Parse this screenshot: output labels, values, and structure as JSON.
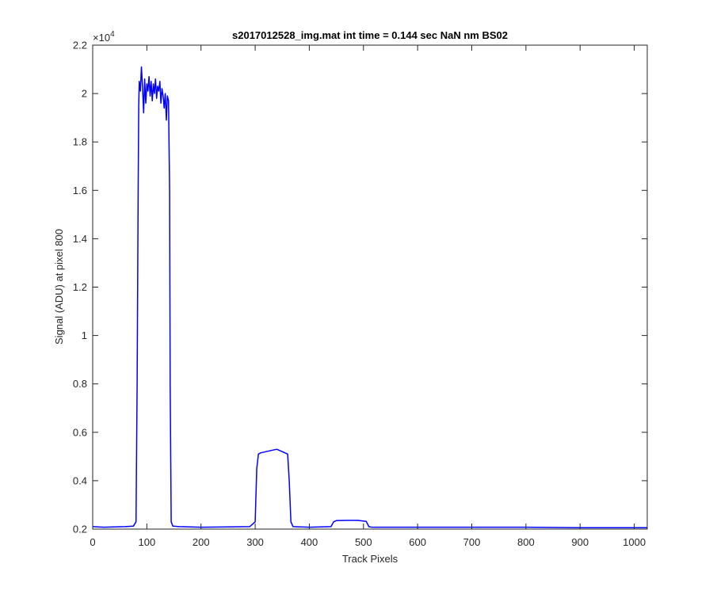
{
  "figure": {
    "title": "s2017012528_img.mat int time = 0.144 sec  NaN nm BS02"
  },
  "chart_data": {
    "type": "line",
    "title": "s2017012528_img.mat int time = 0.144 sec  NaN nm BS02",
    "xlabel": "Track Pixels",
    "ylabel": "Signal (ADU) at pixel 800",
    "xlim": [
      0,
      1024
    ],
    "ylim": [
      2000,
      22000
    ],
    "y_exponent_label": "×10",
    "y_exponent_power": "4",
    "grid": false,
    "legend": "none",
    "x_ticks": [
      0,
      100,
      200,
      300,
      400,
      500,
      600,
      700,
      800,
      900,
      1000
    ],
    "x_tick_labels": [
      "0",
      "100",
      "200",
      "300",
      "400",
      "500",
      "600",
      "700",
      "800",
      "900",
      "1000"
    ],
    "y_ticks": [
      2000,
      4000,
      6000,
      8000,
      10000,
      12000,
      14000,
      16000,
      18000,
      20000,
      22000
    ],
    "y_tick_labels": [
      "0.2",
      "0.4",
      "0.6",
      "0.8",
      "1",
      "1.2",
      "1.4",
      "1.6",
      "1.8",
      "2",
      "2.2"
    ],
    "series": [
      {
        "color": "#0000ff",
        "x": [
          0,
          20,
          40,
          60,
          75,
          80,
          82,
          84,
          85,
          86,
          88,
          90,
          92,
          94,
          96,
          98,
          100,
          102,
          104,
          106,
          108,
          110,
          112,
          114,
          116,
          118,
          120,
          122,
          124,
          126,
          128,
          130,
          132,
          134,
          136,
          138,
          140,
          142,
          143,
          145,
          148,
          160,
          200,
          250,
          290,
          300,
          303,
          306,
          310,
          320,
          330,
          340,
          345,
          350,
          360,
          363,
          366,
          370,
          400,
          440,
          445,
          450,
          470,
          490,
          505,
          510,
          515,
          550,
          600,
          700,
          800,
          900,
          1000,
          1024
        ],
        "y": [
          2100,
          2080,
          2090,
          2100,
          2120,
          2300,
          8000,
          16000,
          19500,
          20500,
          20100,
          21100,
          20300,
          19200,
          20600,
          19600,
          20400,
          20100,
          20700,
          19900,
          20500,
          19700,
          20400,
          20000,
          20600,
          19800,
          20300,
          20100,
          20500,
          19600,
          20200,
          19900,
          19400,
          20000,
          18900,
          19900,
          19700,
          16000,
          8000,
          2300,
          2120,
          2100,
          2080,
          2090,
          2100,
          2300,
          4500,
          5100,
          5150,
          5200,
          5250,
          5300,
          5250,
          5200,
          5100,
          4000,
          2300,
          2100,
          2080,
          2100,
          2300,
          2350,
          2360,
          2360,
          2320,
          2100,
          2080,
          2080,
          2080,
          2080,
          2080,
          2060,
          2060,
          2060
        ]
      }
    ]
  }
}
